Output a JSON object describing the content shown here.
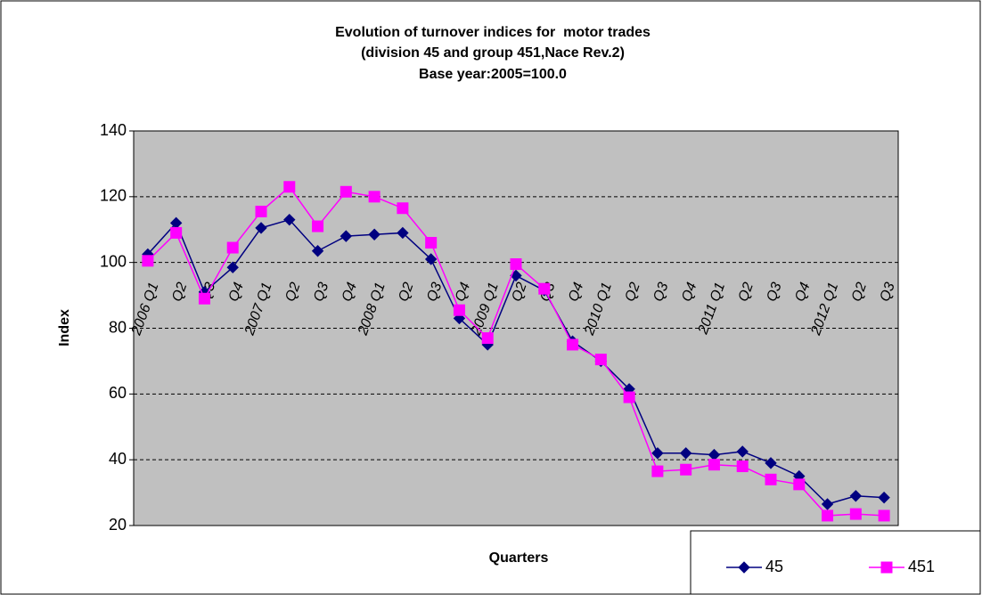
{
  "chart_data": {
    "type": "line",
    "title": [
      "Evolution of turnover indices for  motor trades",
      "(division 45 and group 451,Nace Rev.2)",
      "Base year:2005=100.0"
    ],
    "x_label": "Quarters",
    "y_label": "Index",
    "categories": [
      "2006 Q1",
      "Q2",
      "Q3",
      "Q4",
      "2007 Q1",
      "Q2",
      "Q3",
      "Q4",
      "2008 Q1",
      "Q2",
      "Q3",
      "Q4",
      "2009 Q1",
      "Q2",
      "Q3",
      "Q4",
      "2010 Q1",
      "Q2",
      "Q3",
      "Q4",
      "2011 Q1",
      "Q2",
      "Q3",
      "Q4",
      "2012 Q1",
      "Q2",
      "Q3"
    ],
    "series": [
      {
        "name": "45",
        "color": "#000080",
        "marker": "diamond",
        "values": [
          102.5,
          112,
          91,
          98.5,
          110.5,
          113,
          103.5,
          108,
          108.5,
          109,
          101,
          83,
          75,
          96,
          91.5,
          76,
          70,
          61.5,
          42,
          42,
          41.5,
          42.5,
          39,
          35,
          26.5,
          29,
          28.5
        ]
      },
      {
        "name": "451",
        "color": "#ff00ff",
        "marker": "square",
        "values": [
          100.5,
          109,
          89,
          104.5,
          115.5,
          123,
          111,
          121.5,
          120,
          116.5,
          106,
          85.5,
          77,
          99.5,
          92,
          75,
          70.5,
          59,
          36.5,
          37,
          38.5,
          38,
          34,
          32.5,
          23,
          23.5,
          23
        ]
      }
    ],
    "ylim": [
      20,
      140
    ],
    "yticks": [
      20,
      40,
      60,
      80,
      100,
      120,
      140
    ],
    "grid": true
  }
}
